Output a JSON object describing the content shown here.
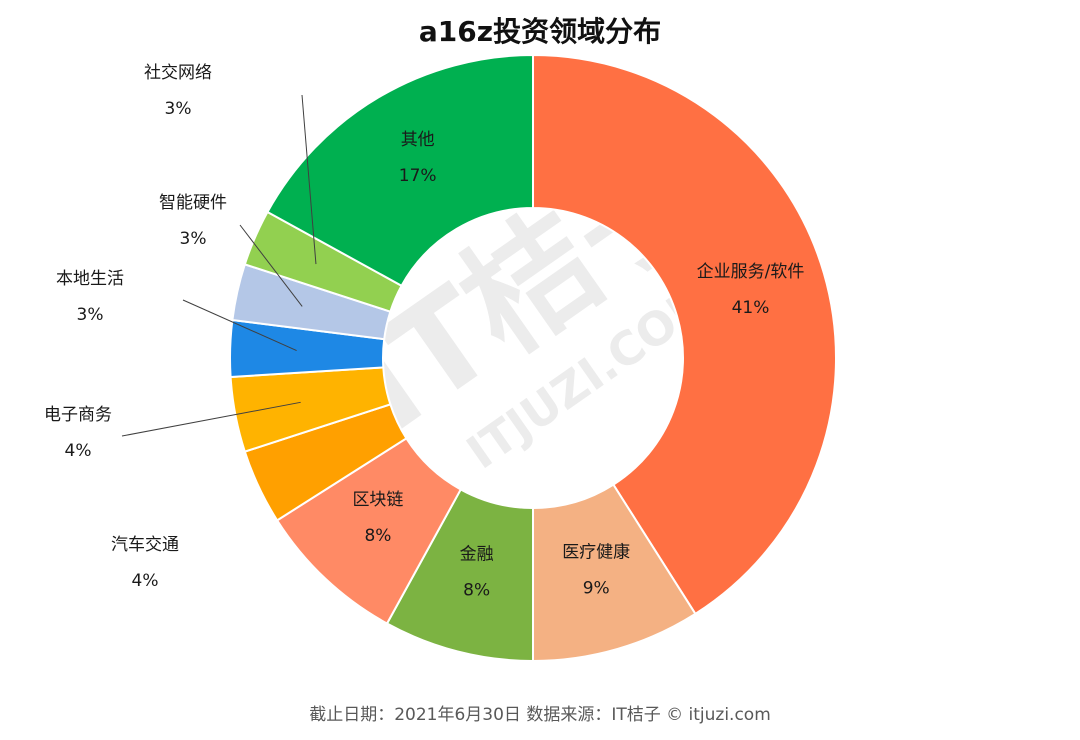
{
  "title": "a16z投资领域分布",
  "footer": "截止日期：2021年6月30日     数据来源：IT桔子 © itjuzi.com",
  "watermark": {
    "main": "IT桔子",
    "sub": "ITJUZI.COM"
  },
  "chart_data": {
    "type": "pie",
    "donut": true,
    "title": "a16z投资领域分布",
    "slices": [
      {
        "label": "企业服务/软件",
        "value": 41,
        "value_label": "41%",
        "color": "#ff7043"
      },
      {
        "label": "医疗健康",
        "value": 9,
        "value_label": "9%",
        "color": "#f4b183"
      },
      {
        "label": "金融",
        "value": 8,
        "value_label": "8%",
        "color": "#7cb342"
      },
      {
        "label": "区块链",
        "value": 8,
        "value_label": "8%",
        "color": "#ff8a65"
      },
      {
        "label": "汽车交通",
        "value": 4,
        "value_label": "4%",
        "color": "#ffa000"
      },
      {
        "label": "电子商务",
        "value": 4,
        "value_label": "4%",
        "color": "#ffb300"
      },
      {
        "label": "本地生活",
        "value": 3,
        "value_label": "3%",
        "color": "#1e88e5"
      },
      {
        "label": "智能硬件",
        "value": 3,
        "value_label": "3%",
        "color": "#b4c7e7"
      },
      {
        "label": "社交网络",
        "value": 3,
        "value_label": "3%",
        "color": "#92d050"
      },
      {
        "label": "其他",
        "value": 17,
        "value_label": "17%",
        "color": "#00b050"
      }
    ]
  }
}
